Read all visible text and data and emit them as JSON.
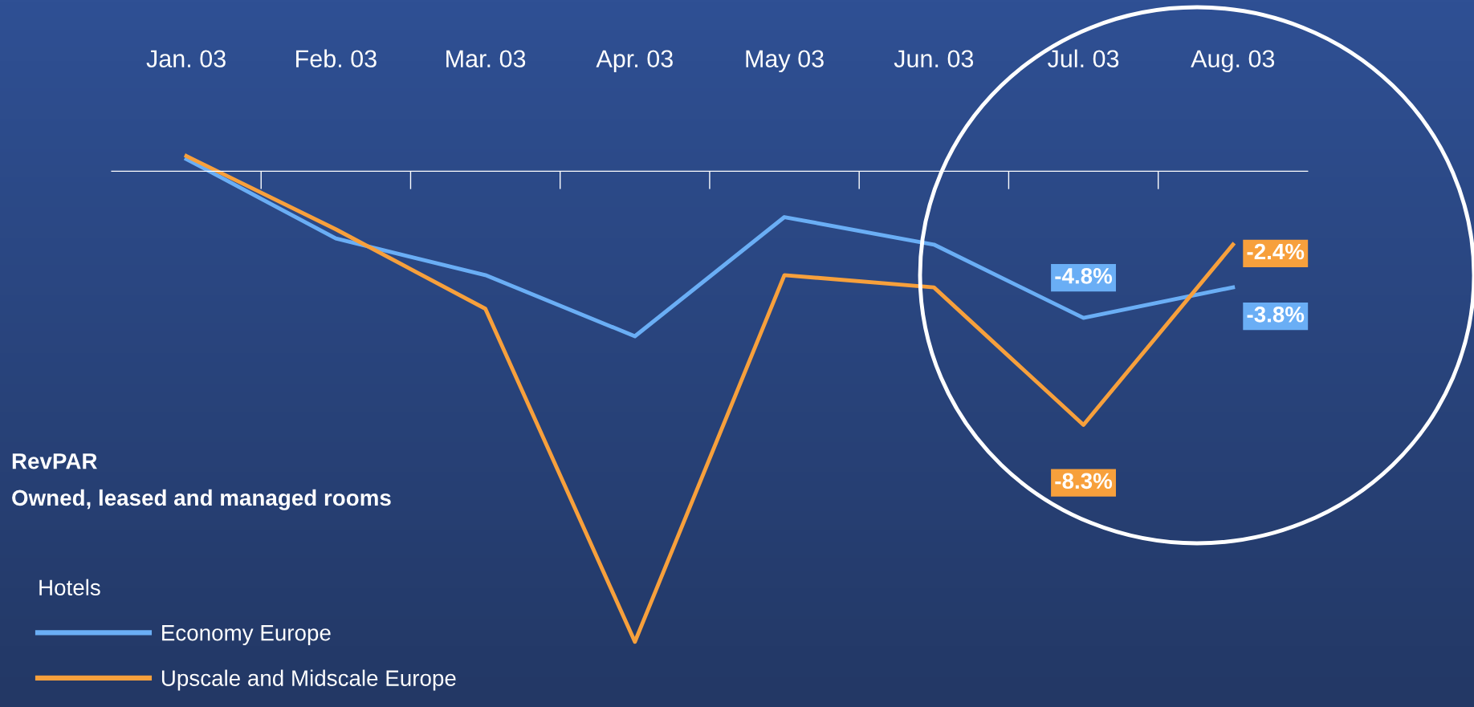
{
  "chart_data": {
    "type": "line",
    "title": "RevPAR",
    "subtitle": "Owned, leased and managed rooms",
    "categories": [
      "Jan. 03",
      "Feb. 03",
      "Mar. 03",
      "Apr. 03",
      "May 03",
      "Jun. 03",
      "Jul. 03",
      "Aug. 03"
    ],
    "series": [
      {
        "name": "Economy Europe",
        "color": "#6aaef5",
        "values": [
          0.4,
          -2.2,
          -3.4,
          -5.4,
          -1.5,
          -2.4,
          -4.8,
          -3.8
        ],
        "value_labels": [
          null,
          null,
          null,
          null,
          null,
          null,
          "-4.8%",
          "-3.8%"
        ]
      },
      {
        "name": "Upscale and Midscale Europe",
        "color": "#f7a03c",
        "values": [
          0.5,
          -1.9,
          -4.5,
          -15.4,
          -3.4,
          -3.8,
          -8.3,
          -2.4
        ],
        "value_labels": [
          null,
          null,
          null,
          null,
          null,
          null,
          "-8.3%",
          "-2.4%"
        ]
      }
    ],
    "tick_labels": "x",
    "legend": "bottom left",
    "legend_title": "Hotels",
    "marker": "none",
    "line_style": "solid"
  }
}
